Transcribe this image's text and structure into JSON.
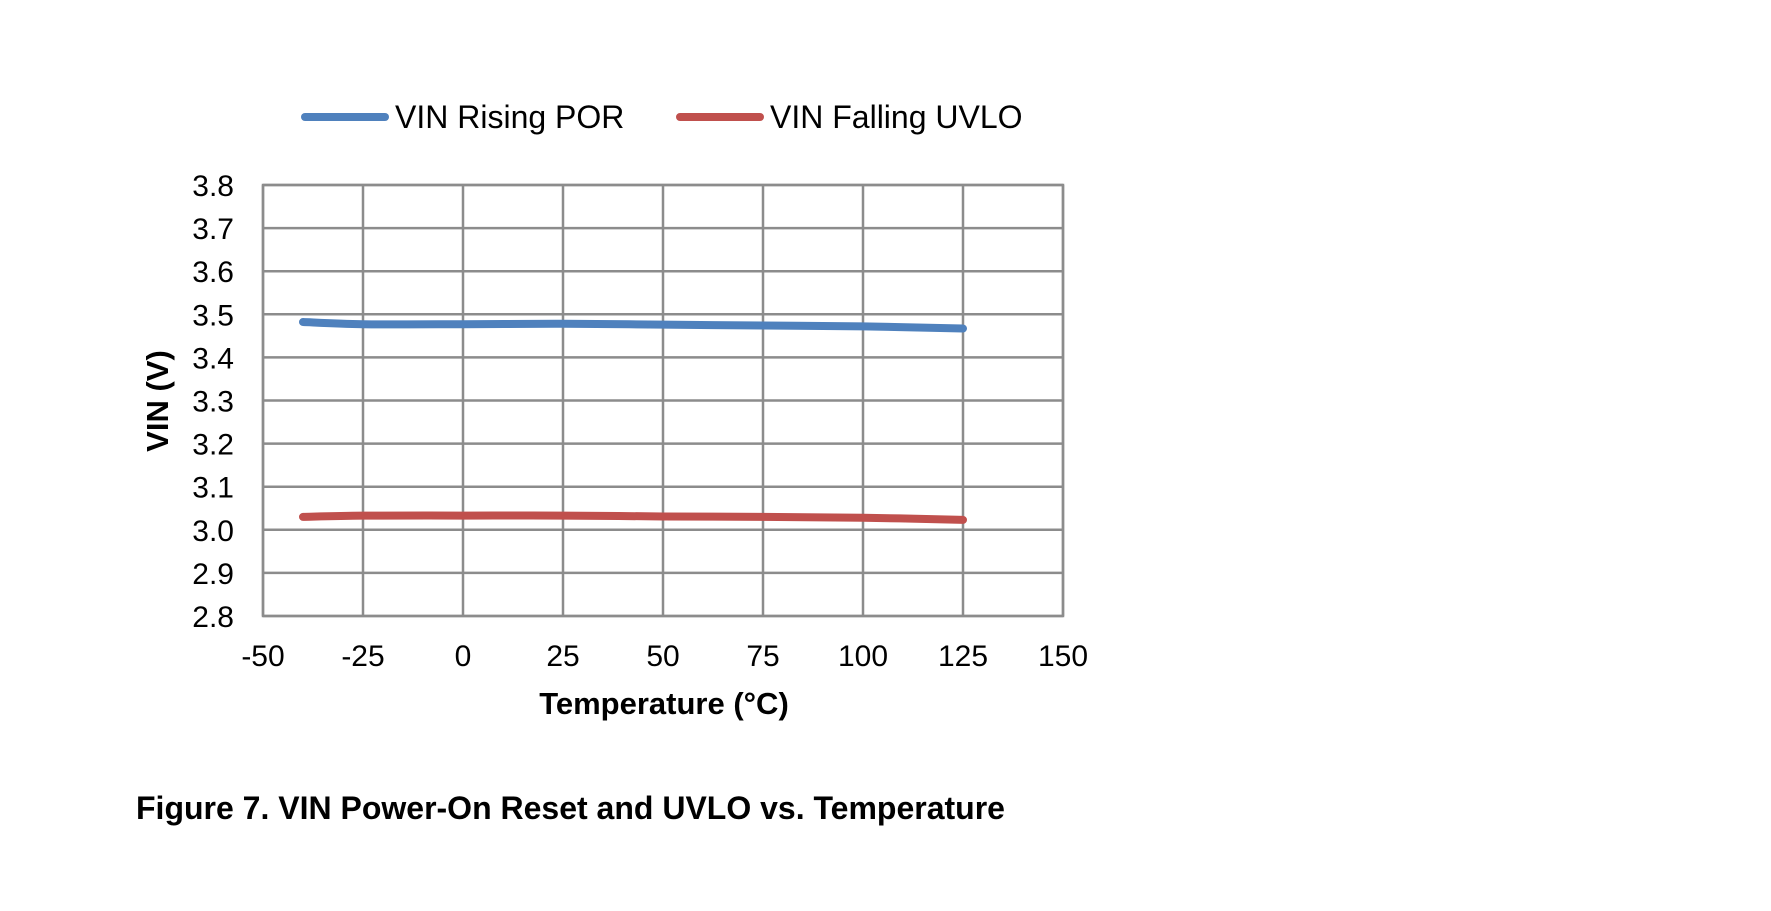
{
  "figure": {
    "caption": "Figure 7. VIN Power-On Reset and UVLO vs. Temperature"
  },
  "chart_data": {
    "type": "line",
    "title": "",
    "xlabel": "Temperature (°C)",
    "ylabel": "VIN (V)",
    "xlim": [
      -50,
      150
    ],
    "ylim": [
      2.8,
      3.8
    ],
    "x_ticks": [
      -50,
      -25,
      0,
      25,
      50,
      75,
      100,
      125,
      150
    ],
    "x_tick_labels": [
      "-50",
      "-25",
      "0",
      "25",
      "50",
      "75",
      "100",
      "125",
      "150"
    ],
    "y_ticks": [
      2.8,
      2.9,
      3.0,
      3.1,
      3.2,
      3.3,
      3.4,
      3.5,
      3.6,
      3.7,
      3.8
    ],
    "y_tick_labels": [
      "2.8",
      "2.9",
      "3.0",
      "3.1",
      "3.2",
      "3.3",
      "3.4",
      "3.5",
      "3.6",
      "3.7",
      "3.8"
    ],
    "grid": true,
    "legend_position": "top",
    "series": [
      {
        "name": "VIN Rising POR",
        "color": "#4F81BD",
        "x": [
          -40,
          -25,
          0,
          25,
          50,
          75,
          100,
          125
        ],
        "y": [
          3.482,
          3.477,
          3.477,
          3.478,
          3.476,
          3.474,
          3.472,
          3.467
        ]
      },
      {
        "name": "VIN Falling UVLO",
        "color": "#C0504D",
        "x": [
          -40,
          -25,
          0,
          25,
          50,
          75,
          100,
          125
        ],
        "y": [
          3.03,
          3.033,
          3.033,
          3.033,
          3.031,
          3.03,
          3.028,
          3.023
        ]
      }
    ]
  }
}
